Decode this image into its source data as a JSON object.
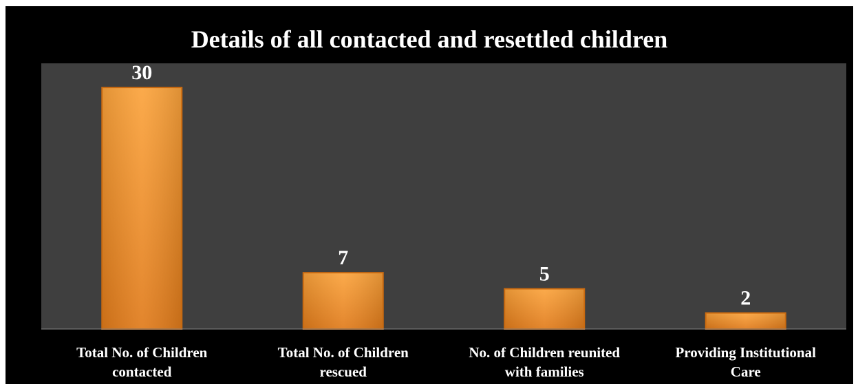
{
  "chart_data": {
    "type": "bar",
    "title": "Details of all contacted and resettled children",
    "categories": [
      [
        "Total No. of Children",
        "contacted"
      ],
      [
        "Total No. of Children",
        "rescued"
      ],
      [
        "No. of Children reunited",
        "with families"
      ],
      [
        "Providing Institutional",
        "Care"
      ]
    ],
    "values": [
      30,
      7,
      5,
      2
    ],
    "xlabel": "",
    "ylabel": "",
    "ylim": [
      0,
      33
    ],
    "grid": false,
    "legend": "none",
    "data_labels": true,
    "colors": {
      "frame_bg": "#000000",
      "plot_bg": "#3f3f3f",
      "bar_top": "#fba33c",
      "bar_bottom": "#e07b1b",
      "bar_edge": "#c96a10",
      "text": "#ffffff"
    }
  }
}
